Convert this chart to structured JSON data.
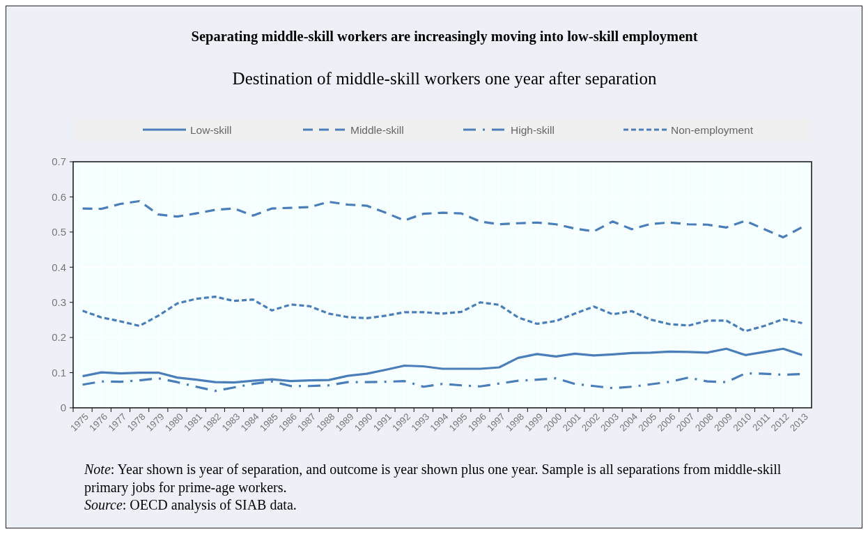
{
  "chart_data": {
    "type": "line",
    "title": "Separating middle-skill workers are increasingly moving into low-skill employment",
    "subtitle": "Destination of middle-skill workers one year after separation",
    "categories": [
      "1975",
      "1976",
      "1977",
      "1978",
      "1979",
      "1980",
      "1981",
      "1982",
      "1983",
      "1984",
      "1985",
      "1986",
      "1987",
      "1988",
      "1989",
      "1990",
      "1991",
      "1992",
      "1993",
      "1994",
      "1995",
      "1996",
      "1997",
      "1998",
      "1999",
      "2000",
      "2001",
      "2002",
      "2003",
      "2004",
      "2005",
      "2006",
      "2007",
      "2008",
      "2009",
      "2010",
      "2011",
      "2012",
      "2013"
    ],
    "series": [
      {
        "name": "Low-skill",
        "color": "#4a7ebb",
        "line_style": "solid",
        "values": [
          0.09,
          0.101,
          0.098,
          0.1,
          0.1,
          0.086,
          0.08,
          0.073,
          0.072,
          0.077,
          0.081,
          0.076,
          0.078,
          0.079,
          0.091,
          0.097,
          0.108,
          0.12,
          0.118,
          0.111,
          0.111,
          0.111,
          0.115,
          0.142,
          0.153,
          0.146,
          0.154,
          0.149,
          0.152,
          0.156,
          0.157,
          0.16,
          0.159,
          0.157,
          0.168,
          0.15,
          0.159,
          0.168,
          0.15
        ]
      },
      {
        "name": "Middle-skill",
        "color": "#4a7ebb",
        "line_style": "dashed",
        "values": [
          0.567,
          0.566,
          0.58,
          0.588,
          0.55,
          0.544,
          0.553,
          0.563,
          0.567,
          0.547,
          0.567,
          0.569,
          0.571,
          0.586,
          0.578,
          0.575,
          0.555,
          0.533,
          0.552,
          0.555,
          0.553,
          0.53,
          0.522,
          0.525,
          0.527,
          0.522,
          0.51,
          0.502,
          0.53,
          0.508,
          0.523,
          0.527,
          0.522,
          0.521,
          0.513,
          0.532,
          0.508,
          0.485,
          0.514
        ]
      },
      {
        "name": "High-skill",
        "color": "#4a7ebb",
        "line_style": "dashdot",
        "values": [
          0.066,
          0.075,
          0.074,
          0.078,
          0.084,
          0.073,
          0.06,
          0.048,
          0.058,
          0.068,
          0.075,
          0.062,
          0.062,
          0.064,
          0.073,
          0.073,
          0.074,
          0.076,
          0.06,
          0.068,
          0.064,
          0.061,
          0.069,
          0.077,
          0.08,
          0.084,
          0.068,
          0.062,
          0.056,
          0.06,
          0.067,
          0.074,
          0.086,
          0.075,
          0.073,
          0.098,
          0.097,
          0.094,
          0.096
        ]
      },
      {
        "name": "Non-employment",
        "color": "#4a7ebb",
        "line_style": "dotted",
        "values": [
          0.276,
          0.257,
          0.246,
          0.233,
          0.262,
          0.297,
          0.31,
          0.316,
          0.304,
          0.308,
          0.277,
          0.294,
          0.289,
          0.268,
          0.258,
          0.255,
          0.262,
          0.272,
          0.272,
          0.268,
          0.273,
          0.3,
          0.293,
          0.257,
          0.239,
          0.247,
          0.268,
          0.288,
          0.266,
          0.275,
          0.251,
          0.238,
          0.234,
          0.248,
          0.248,
          0.218,
          0.233,
          0.252,
          0.241
        ]
      }
    ],
    "ylim": [
      0,
      0.7
    ],
    "yticks": [
      0,
      0.1,
      0.2,
      0.3,
      0.4,
      0.5,
      0.6,
      0.7
    ],
    "grid": true,
    "legend": "top",
    "marker": "none",
    "annotations": [
      "Note: Year shown is year of separation, and outcome is year shown plus one year. Sample is all separations from middle-skill primary jobs for prime-age workers.",
      "Source: OECD analysis of SIAB data."
    ]
  }
}
